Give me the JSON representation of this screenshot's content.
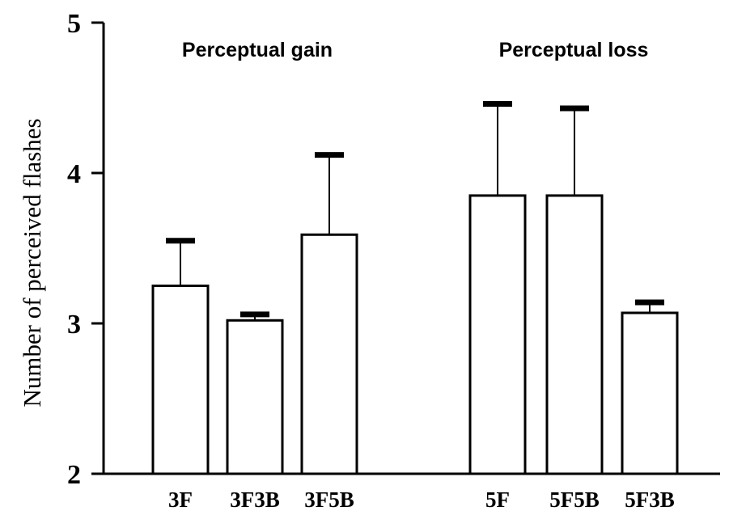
{
  "chart_data": {
    "type": "bar",
    "ylabel": "Number of perceived flashes",
    "ylim": [
      2,
      5
    ],
    "yticks": [
      2,
      3,
      4,
      5
    ],
    "grid": false,
    "annotations": [
      "Perceptual gain",
      "Perceptual loss"
    ],
    "categories": [
      "3F",
      "3F3B",
      "3F5B",
      "5F",
      "5F5B",
      "5F3B"
    ],
    "values": [
      3.25,
      3.02,
      3.59,
      3.85,
      3.85,
      3.07
    ],
    "error_upper": [
      3.55,
      3.06,
      4.12,
      4.46,
      4.43,
      3.14
    ],
    "colors": {
      "bar_fill": "#ffffff",
      "stroke": "#000000"
    }
  }
}
